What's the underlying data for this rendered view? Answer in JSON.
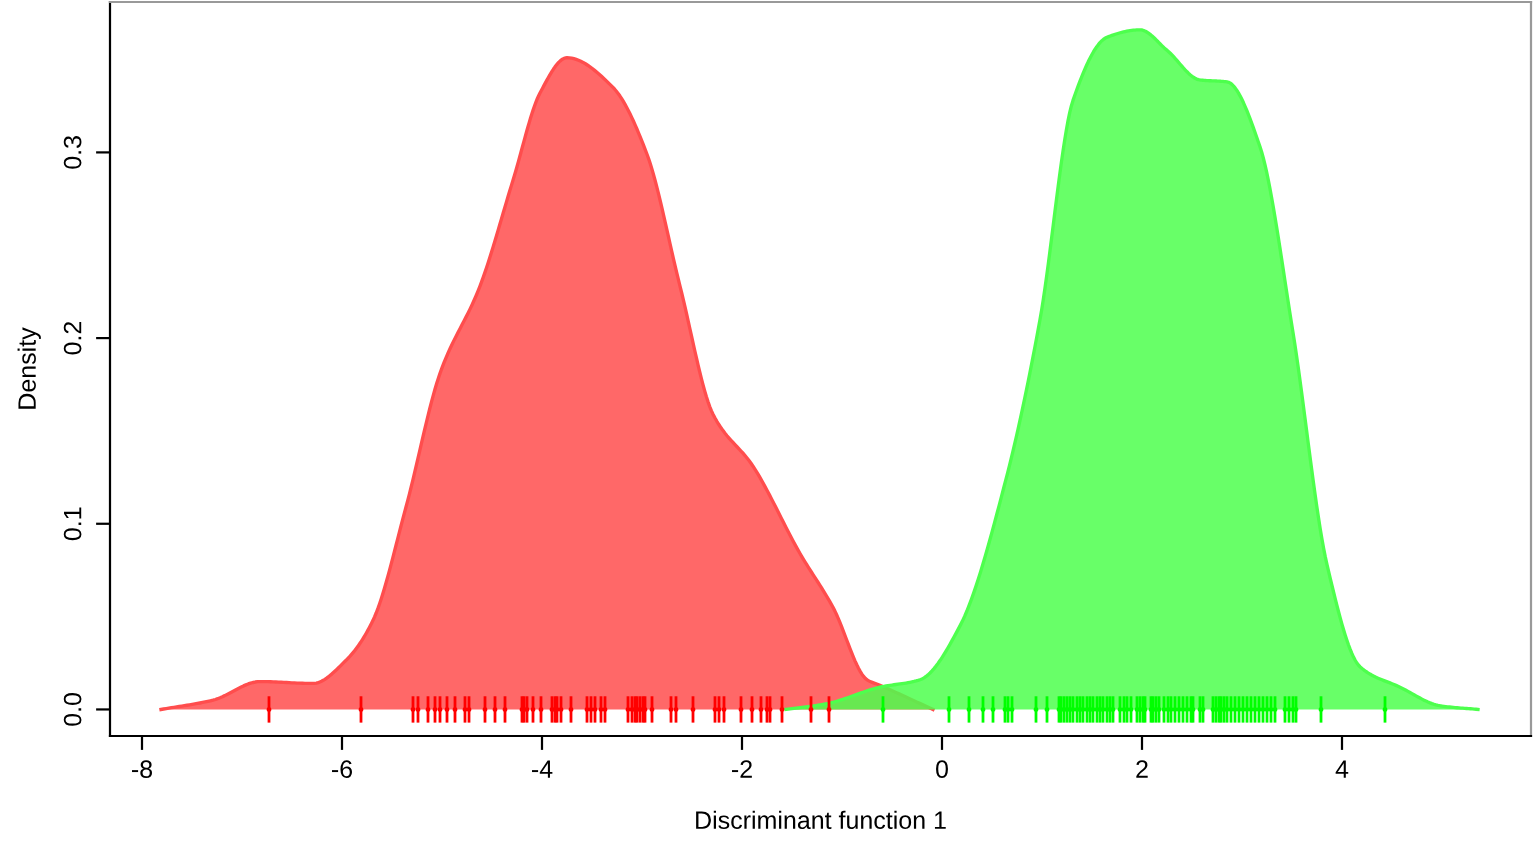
{
  "chart_data": {
    "type": "area",
    "xlabel": "Discriminant function 1",
    "ylabel": "Density",
    "xlim": [
      -8.32,
      5.89
    ],
    "ylim": [
      -0.0143,
      0.381
    ],
    "xticks": [
      -8,
      -6,
      -4,
      -2,
      0,
      2,
      4
    ],
    "yticks": [
      {
        "value": 0,
        "label": "0.0"
      },
      {
        "value": 0.1,
        "label": "0.1"
      },
      {
        "value": 0.2,
        "label": "0.2"
      },
      {
        "value": 0.3,
        "label": "0.3"
      }
    ],
    "series": [
      {
        "color": "#ff4d4d",
        "x": [
          -7.81,
          -7.29,
          -6.82,
          -6.29,
          -5.95,
          -5.69,
          -5.36,
          -5.02,
          -4.62,
          -4.29,
          -4.02,
          -3.75,
          -3.29,
          -2.95,
          -2.62,
          -2.29,
          -1.89,
          -1.42,
          -1.09,
          -0.75,
          -0.62,
          -0.09
        ],
        "values": [
          0,
          0.005,
          0.015,
          0.014,
          0.027,
          0.048,
          0.109,
          0.181,
          0.228,
          0.285,
          0.332,
          0.351,
          0.335,
          0.299,
          0.228,
          0.159,
          0.131,
          0.084,
          0.055,
          0.016,
          0.013,
          0
        ]
      },
      {
        "color": "#4dff4d",
        "x": [
          -1.56,
          -1.16,
          -0.62,
          -0.22,
          0.18,
          0.64,
          0.98,
          1.31,
          1.65,
          1.98,
          2.25,
          2.58,
          2.85,
          3.18,
          3.51,
          3.85,
          4.18,
          4.58,
          4.98,
          5.36
        ],
        "values": [
          0,
          0.003,
          0.012,
          0.016,
          0.045,
          0.124,
          0.21,
          0.328,
          0.362,
          0.366,
          0.355,
          0.339,
          0.338,
          0.303,
          0.203,
          0.078,
          0.023,
          0.012,
          0.002,
          0
        ]
      },
      {
        "type": "scatter",
        "color": "#ff0000",
        "x": [
          -6.73,
          -5.81,
          -5.29,
          -5.24,
          -5.14,
          -5.07,
          -5.02,
          -4.95,
          -4.87,
          -4.77,
          -4.73,
          -4.57,
          -4.47,
          -4.37,
          -4.2,
          -4.18,
          -4.15,
          -4.09,
          -4.01,
          -3.9,
          -3.87,
          -3.85,
          -3.81,
          -3.71,
          -3.55,
          -3.51,
          -3.47,
          -3.41,
          -3.37,
          -3.14,
          -3.1,
          -3.07,
          -3.05,
          -3.02,
          -2.99,
          -2.97,
          -2.9,
          -2.71,
          -2.66,
          -2.49,
          -2.27,
          -2.23,
          -2.18,
          -2.01,
          -1.9,
          -1.81,
          -1.75,
          -1.72,
          -1.6,
          -1.31,
          -1.13
        ],
        "values": [
          0,
          0,
          0,
          0,
          0,
          0,
          0,
          0,
          0,
          0,
          0,
          0,
          0,
          0,
          0,
          0,
          0,
          0,
          0,
          0,
          0,
          0,
          0,
          0,
          0,
          0,
          0,
          0,
          0,
          0,
          0,
          0,
          0,
          0,
          0,
          0,
          0,
          0,
          0,
          0,
          0,
          0,
          0,
          0,
          0,
          0,
          0,
          0,
          0,
          0,
          0
        ]
      },
      {
        "type": "scatter",
        "color": "#00ff00",
        "x": [
          -0.59,
          0.07,
          0.27,
          0.41,
          0.51,
          0.63,
          0.66,
          0.7,
          0.94,
          1.05,
          1.17,
          1.19,
          1.22,
          1.25,
          1.28,
          1.31,
          1.35,
          1.38,
          1.41,
          1.45,
          1.48,
          1.51,
          1.55,
          1.58,
          1.61,
          1.65,
          1.68,
          1.71,
          1.78,
          1.82,
          1.85,
          1.89,
          1.95,
          1.98,
          2.01,
          2.03,
          2.09,
          2.11,
          2.14,
          2.17,
          2.22,
          2.26,
          2.29,
          2.33,
          2.37,
          2.41,
          2.45,
          2.49,
          2.51,
          2.58,
          2.61,
          2.71,
          2.74,
          2.77,
          2.79,
          2.82,
          2.85,
          2.89,
          2.93,
          2.97,
          3.01,
          3.05,
          3.09,
          3.13,
          3.17,
          3.21,
          3.25,
          3.29,
          3.33,
          3.43,
          3.47,
          3.51,
          3.54,
          3.79,
          4.43
        ],
        "values": [
          0,
          0,
          0,
          0,
          0,
          0,
          0,
          0,
          0,
          0,
          0,
          0,
          0,
          0,
          0,
          0,
          0,
          0,
          0,
          0,
          0,
          0,
          0,
          0,
          0,
          0,
          0,
          0,
          0,
          0,
          0,
          0,
          0,
          0,
          0,
          0,
          0,
          0,
          0,
          0,
          0,
          0,
          0,
          0,
          0,
          0,
          0,
          0,
          0,
          0,
          0,
          0,
          0,
          0,
          0,
          0,
          0,
          0,
          0,
          0,
          0,
          0,
          0,
          0,
          0,
          0,
          0,
          0,
          0,
          0,
          0,
          0,
          0,
          0,
          0
        ]
      }
    ]
  }
}
